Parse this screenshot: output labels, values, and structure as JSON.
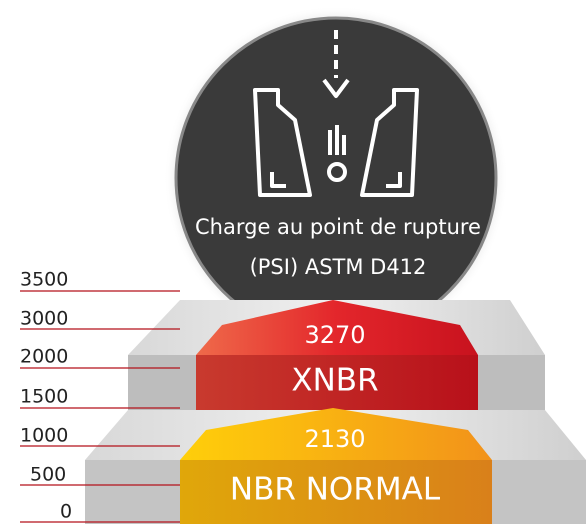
{
  "title_lines": [
    "Charge au point de rupture",
    "(PSI) ASTM D412"
  ],
  "scale": [
    "3500",
    "3000",
    "2000",
    "1500",
    "1000",
    "500",
    "0"
  ],
  "items": [
    {
      "value": "3270",
      "label": "XNBR"
    },
    {
      "value": "2130",
      "label": "NBR NORMAL"
    }
  ]
}
